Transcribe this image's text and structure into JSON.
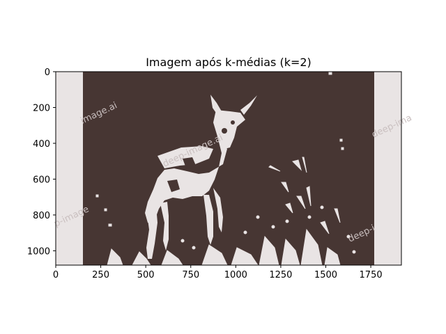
{
  "figure": {
    "title": "Imagem após k-médias (k=2)",
    "colors": {
      "dark_cluster": "#473633",
      "light_cluster": "#e9e4e4",
      "watermark": "#c9bfbf"
    }
  },
  "axes": {
    "x": {
      "lim": [
        0,
        1920
      ],
      "ticks": [
        0,
        250,
        500,
        750,
        1000,
        1250,
        1500,
        1750
      ],
      "tick_labels": [
        "0",
        "250",
        "500",
        "750",
        "1000",
        "1250",
        "1500",
        "1750"
      ]
    },
    "y": {
      "lim": [
        0,
        1080
      ],
      "inverted": true,
      "ticks": [
        0,
        200,
        400,
        600,
        800,
        1000
      ],
      "tick_labels": [
        "0",
        "200",
        "400",
        "600",
        "800",
        "1000"
      ]
    }
  },
  "image": {
    "content": "two-color k-means segmentation of a photo of a young deer among grass",
    "watermarks": [
      "image.ai",
      "deep-image.ai",
      "deep-ima",
      "p-image",
      "deep-i"
    ]
  }
}
